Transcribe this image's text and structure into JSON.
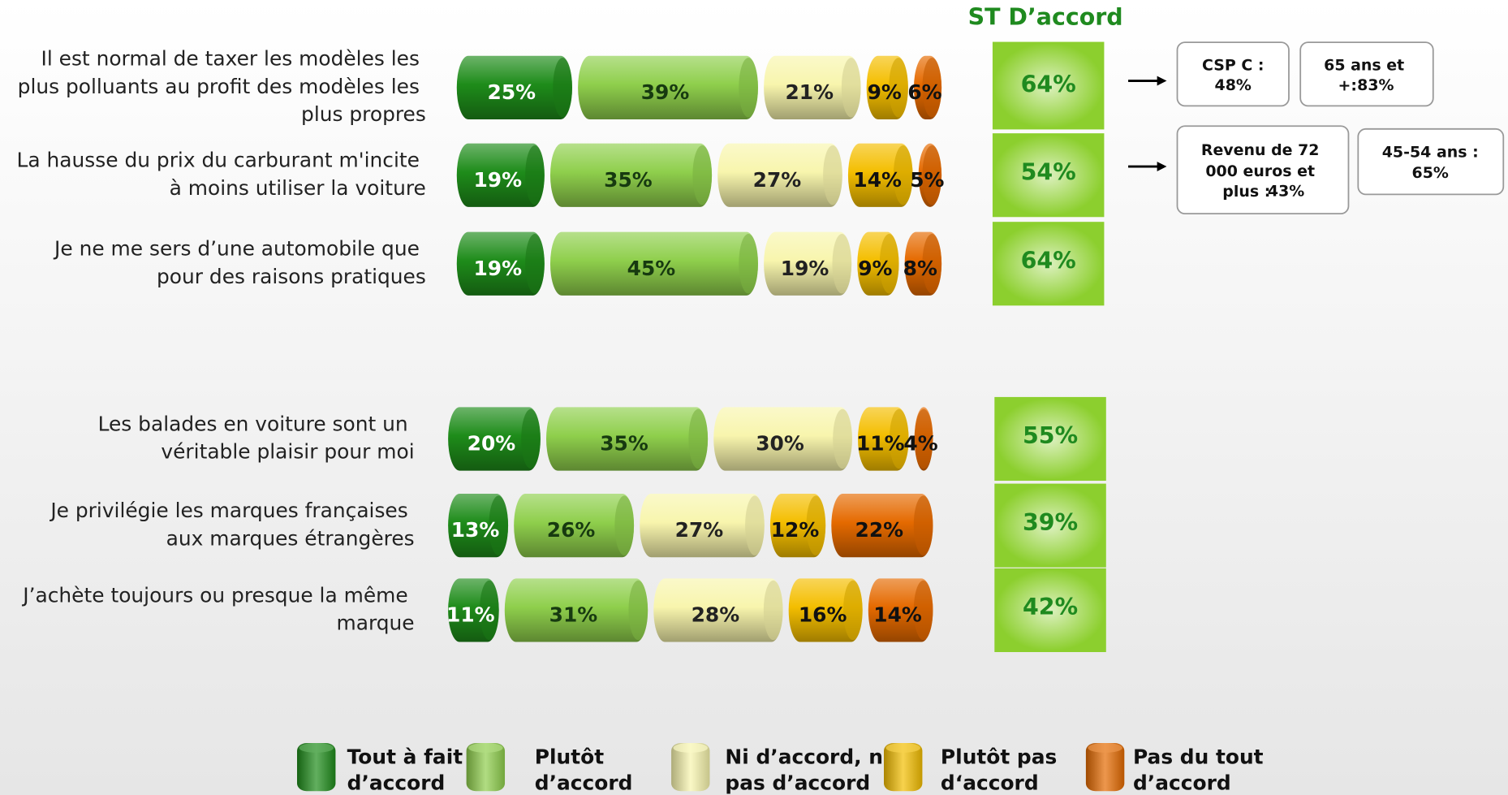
{
  "chart_data": {
    "type": "bar",
    "orientation": "horizontal",
    "stacked": true,
    "categories": [
      "Il est normal de taxer les modèles les plus polluants au profit des modèles les plus propres",
      "La hausse du prix du carburant m'incite à moins utiliser la voiture",
      "Je ne me sers d’une automobile que pour des raisons pratiques",
      "Les balades en voiture sont un véritable plaisir pour moi",
      "Je privilégie les marques françaises aux marques étrangères",
      "J’achète toujours ou presque la même marque"
    ],
    "series": [
      {
        "name": "Tout à fait d’accord",
        "color": "#1e8c1a",
        "label_color": "#ffffff",
        "values": [
          25,
          19,
          19,
          20,
          13,
          11
        ],
        "value_labels": [
          "25%",
          "19%",
          "19%",
          "20%",
          "13%",
          "11%"
        ]
      },
      {
        "name": "Plutôt d’accord",
        "color": "#8fcf4c",
        "label_color": "#173a10",
        "values": [
          39,
          35,
          45,
          35,
          26,
          31
        ],
        "value_labels": [
          "39%",
          "35%",
          "45%",
          "35%",
          "26%",
          "31%"
        ]
      },
      {
        "name": "Ni d’accord, ni pas d’accord",
        "color": "#f8f5ad",
        "label_color": "#222222",
        "values": [
          21,
          27,
          19,
          30,
          27,
          28
        ],
        "value_labels": [
          "21%",
          "27%",
          "19%",
          "30%",
          "27%",
          "28%"
        ]
      },
      {
        "name": "Plutôt pas d‘accord",
        "color": "#f4be00",
        "label_color": "#111111",
        "values": [
          9,
          14,
          9,
          11,
          12,
          16
        ],
        "value_labels": [
          "9%",
          "14%",
          "9%",
          "11%",
          "12%",
          "16%"
        ]
      },
      {
        "name": "Pas du tout d’accord",
        "color": "#e56a00",
        "label_color": "#111111",
        "values": [
          6,
          5,
          8,
          4,
          22,
          14
        ],
        "value_labels": [
          "6%",
          "5%",
          "8%",
          "4%",
          "22%",
          "14%"
        ]
      }
    ],
    "total": {
      "title": "ST D’accord",
      "color": "#8ccf2e",
      "text_color": "#1f8a1f",
      "values": [
        64,
        54,
        64,
        55,
        39,
        42
      ],
      "value_labels": [
        "64%",
        "54%",
        "64%",
        "55%",
        "39%",
        "42%"
      ]
    },
    "callouts": [
      {
        "label": "CSP C :",
        "value": "48%",
        "color": "#e8141b"
      },
      {
        "label": "65 ans et +:",
        "value": "83%",
        "color": "#1f8a1f"
      },
      {
        "label": "Revenu de 72 000 euros et plus :",
        "value": "43%",
        "color": "#e8141b"
      },
      {
        "label": "45-54 ans :",
        "value": "65%",
        "color": "#1f8a1f"
      }
    ]
  }
}
